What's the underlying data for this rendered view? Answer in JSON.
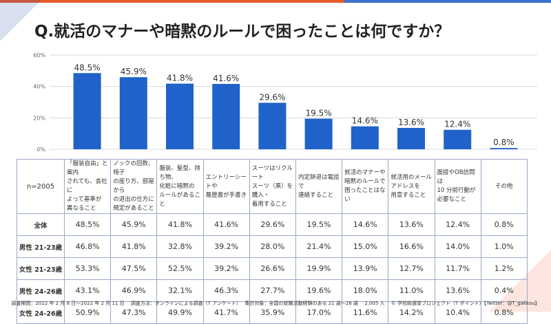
{
  "title": "Q.就活のマナーや暗黙のルールで困ったことは何ですか？",
  "chart_data": {
    "type": "bar",
    "values": [
      48.5,
      45.9,
      41.8,
      41.6,
      29.6,
      19.5,
      14.6,
      13.6,
      12.4,
      0.8
    ],
    "value_labels": [
      "48.5%",
      "45.9%",
      "41.8%",
      "41.6%",
      "29.6%",
      "19.5%",
      "14.6%",
      "13.6%",
      "12.4%",
      "0.8%"
    ],
    "yticks": [
      "0%",
      "20%",
      "40%",
      "60%"
    ],
    "ylim": [
      0,
      60
    ],
    "grid": true,
    "color": "#1f62c9"
  },
  "table": {
    "n_label": "n=2005",
    "headers": [
      [
        "「服装自由」と案内",
        "されても、会社に",
        "よって基準が",
        "異なること"
      ],
      [
        "ノックの回数、椅子",
        "の座り方、部屋から",
        "の退出の仕方に",
        "規定があること"
      ],
      [
        "服装、髪型、持ち物、",
        "化粧に暗黙の",
        "ルールがあること"
      ],
      [
        "エントリーシートや",
        "履歴書が手書き"
      ],
      [
        "スーツはリクルート",
        "スーツ（黒）を購入・",
        "着用すること"
      ],
      [
        "内定辞退は電話で",
        "連絡すること"
      ],
      [
        "就活のマナーや",
        "暗黙のルールで",
        "困ったことはない"
      ],
      [
        "就活用のメール",
        "アドレスを",
        "用意すること"
      ],
      [
        "面接やOB訪問は",
        "10 分前行動が",
        "必要なこと"
      ],
      [
        "その他"
      ]
    ],
    "rows": [
      {
        "label": "全体",
        "values": [
          "48.5%",
          "45.9%",
          "41.8%",
          "41.6%",
          "29.6%",
          "19.5%",
          "14.6%",
          "13.6%",
          "12.4%",
          "0.8%"
        ]
      },
      {
        "label": "男性 21-23歳",
        "values": [
          "46.8%",
          "41.8%",
          "32.8%",
          "39.2%",
          "28.0%",
          "21.4%",
          "15.0%",
          "16.6%",
          "14.0%",
          "1.0%"
        ]
      },
      {
        "label": "女性 21-23歳",
        "values": [
          "53.3%",
          "47.5%",
          "52.5%",
          "39.2%",
          "26.6%",
          "19.9%",
          "13.9%",
          "12.7%",
          "11.7%",
          "1.2%"
        ]
      },
      {
        "label": "男性 24-26歳",
        "values": [
          "43.1%",
          "46.9%",
          "32.1%",
          "46.3%",
          "27.7%",
          "19.6%",
          "18.0%",
          "11.0%",
          "13.6%",
          "0.4%"
        ]
      },
      {
        "label": "女性 24-26歳",
        "values": [
          "50.9%",
          "47.3%",
          "49.9%",
          "41.7%",
          "35.9%",
          "17.0%",
          "11.6%",
          "14.2%",
          "10.4%",
          "0.8%"
        ]
      }
    ]
  },
  "footer": "調査期間：2022 年 2 月 8 日～2022 年 2 月 11 日　 調査方法：オンラインによる調査（T アンケート）　 集計対象：全国の就職活動経験のある 21 歳～26 歳　 2,005 人　 © 学校総選挙プロジェクト（T ポイント）【Twitter：@T_gakkou】"
}
